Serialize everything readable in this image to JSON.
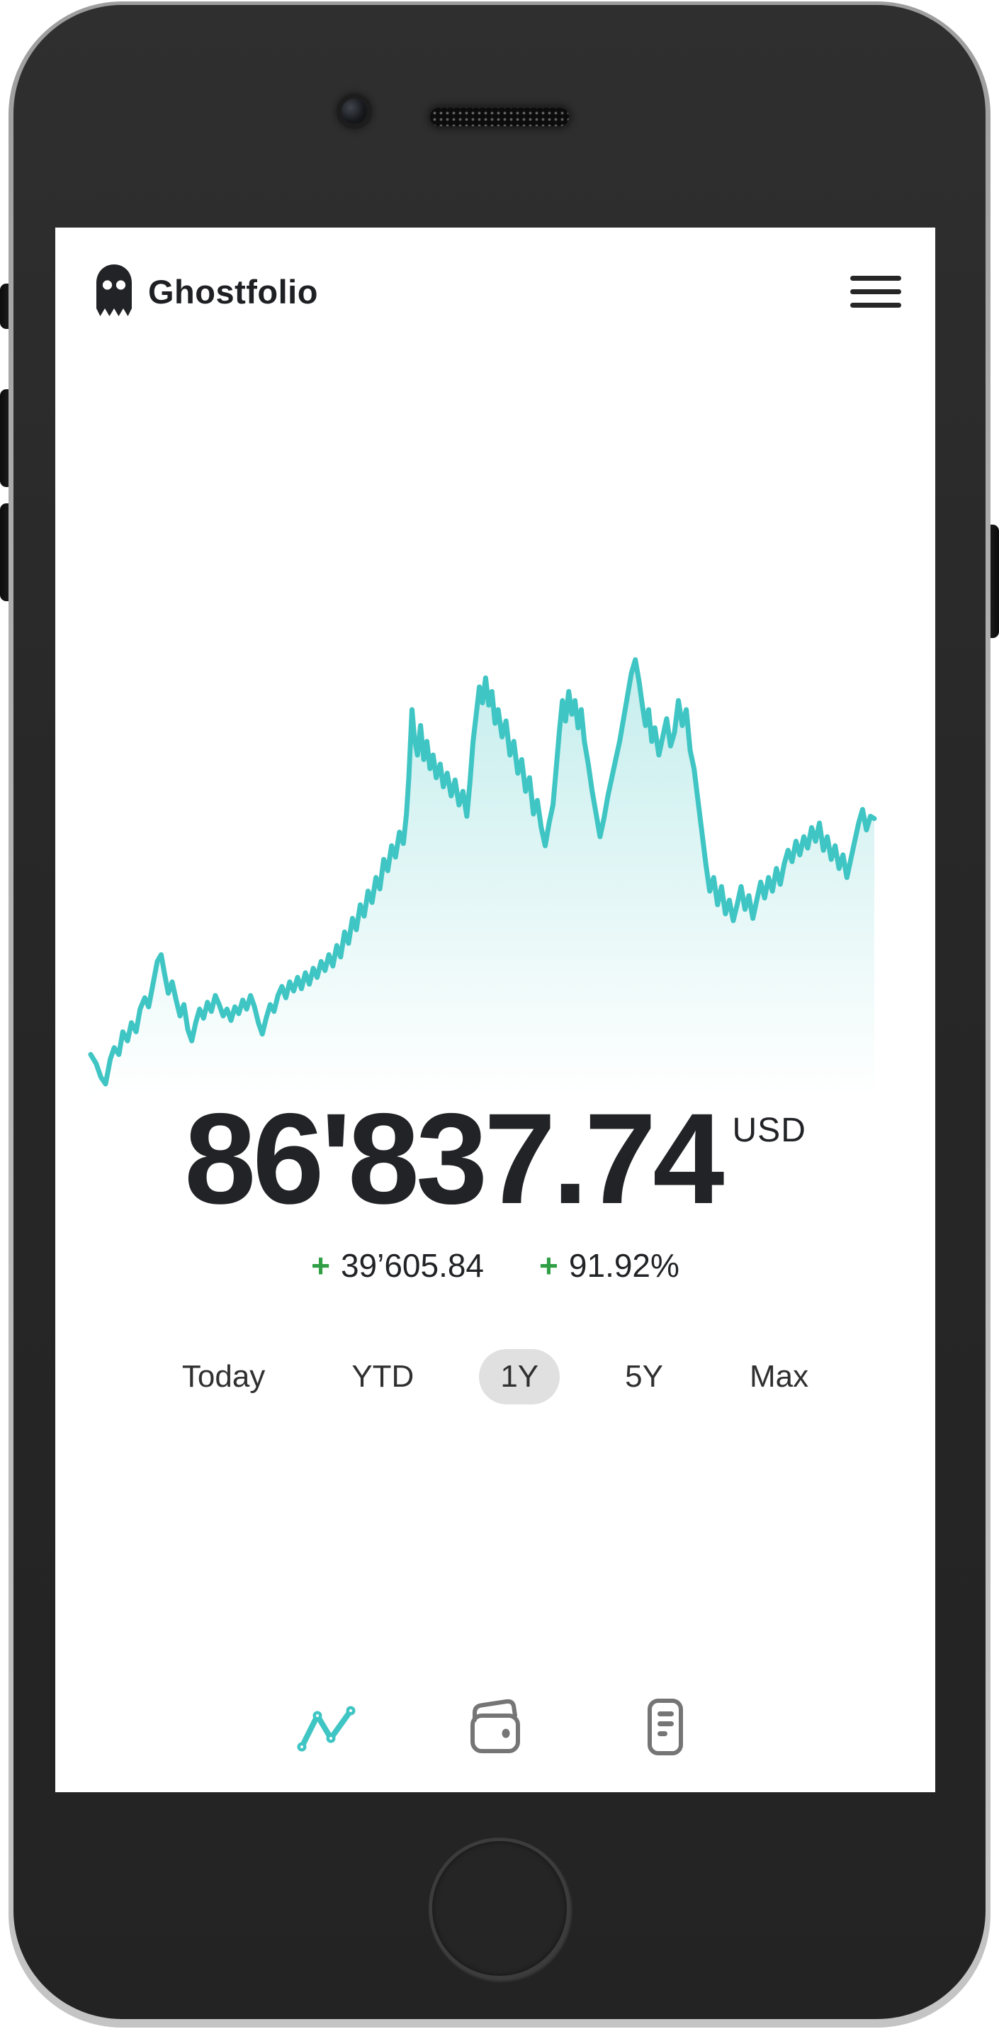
{
  "header": {
    "title": "Ghostfolio",
    "logo_icon": "ghost-icon",
    "menu_icon": "hamburger-menu-icon"
  },
  "portfolio": {
    "value": "86'837.74",
    "currency": "USD",
    "change_value_sign": "+",
    "change_value": "39’605.84",
    "change_percent_sign": "+",
    "change_percent": "91.92%"
  },
  "ranges": {
    "selected": "1Y",
    "options": [
      {
        "label": "Today",
        "selected": false
      },
      {
        "label": "YTD",
        "selected": false
      },
      {
        "label": "1Y",
        "selected": true
      },
      {
        "label": "5Y",
        "selected": false
      },
      {
        "label": "Max",
        "selected": false
      }
    ]
  },
  "nav": {
    "items": [
      {
        "icon": "performance-line-chart-icon",
        "active": true
      },
      {
        "icon": "wallet-icon",
        "active": false
      },
      {
        "icon": "transactions-document-icon",
        "active": false
      }
    ]
  },
  "colors": {
    "accent": "#3fc5c3",
    "green": "#2f9e44",
    "text": "#222326",
    "icon_gray": "#757575",
    "pill": "#e0e0e0",
    "fill_top": "rgba(63,197,195,0.30)",
    "fill_bottom": "rgba(63,197,195,0)"
  },
  "chart_data": {
    "type": "area",
    "title": "Portfolio performance sparkline",
    "range": "1Y",
    "end_value": "86'837.74",
    "line_color": "#3fc5c3",
    "fill": "vertical gradient teal to transparent",
    "grid": false,
    "axes_visible": false,
    "note": "points normalized: x 0-100 left to right, y 0-100 top to bottom (smaller y = higher portfolio value)",
    "points": [
      [
        0,
        91
      ],
      [
        0.7,
        93
      ],
      [
        1.3,
        96
      ],
      [
        1.9,
        97.5
      ],
      [
        2.5,
        92
      ],
      [
        3,
        89.5
      ],
      [
        3.6,
        91
      ],
      [
        4.1,
        86
      ],
      [
        4.7,
        88
      ],
      [
        5.2,
        84
      ],
      [
        5.8,
        86
      ],
      [
        6.3,
        81
      ],
      [
        6.9,
        78.5
      ],
      [
        7.4,
        80.5
      ],
      [
        8,
        75
      ],
      [
        8.5,
        70.5
      ],
      [
        9,
        69
      ],
      [
        9.4,
        73
      ],
      [
        9.9,
        77.5
      ],
      [
        10.4,
        75
      ],
      [
        10.9,
        79
      ],
      [
        11.4,
        82.5
      ],
      [
        11.9,
        80
      ],
      [
        12.4,
        85.5
      ],
      [
        12.9,
        88
      ],
      [
        13.4,
        84
      ],
      [
        13.9,
        81
      ],
      [
        14.4,
        83
      ],
      [
        14.9,
        79.5
      ],
      [
        15.4,
        81.5
      ],
      [
        15.9,
        78
      ],
      [
        16.4,
        80
      ],
      [
        16.9,
        82.5
      ],
      [
        17.4,
        81
      ],
      [
        17.9,
        83.5
      ],
      [
        18.4,
        80.5
      ],
      [
        18.9,
        82
      ],
      [
        19.4,
        79
      ],
      [
        19.9,
        81
      ],
      [
        20.4,
        78
      ],
      [
        20.9,
        80.5
      ],
      [
        21.4,
        84
      ],
      [
        21.9,
        86.5
      ],
      [
        22.4,
        83
      ],
      [
        22.9,
        80
      ],
      [
        23.4,
        81.5
      ],
      [
        23.9,
        78
      ],
      [
        24.4,
        76
      ],
      [
        24.9,
        78.5
      ],
      [
        25.4,
        75
      ],
      [
        25.9,
        77
      ],
      [
        26.4,
        74
      ],
      [
        26.9,
        76.5
      ],
      [
        27.4,
        73
      ],
      [
        27.9,
        75.5
      ],
      [
        28.4,
        72
      ],
      [
        28.9,
        74
      ],
      [
        29.4,
        70.5
      ],
      [
        29.9,
        72.5
      ],
      [
        30.4,
        69
      ],
      [
        30.9,
        71.5
      ],
      [
        31.4,
        67
      ],
      [
        31.9,
        69.5
      ],
      [
        32.4,
        64
      ],
      [
        32.9,
        66.5
      ],
      [
        33.4,
        61
      ],
      [
        33.9,
        63.5
      ],
      [
        34.4,
        58
      ],
      [
        34.9,
        60.5
      ],
      [
        35.4,
        55
      ],
      [
        35.9,
        57.5
      ],
      [
        36.4,
        52
      ],
      [
        36.9,
        54.5
      ],
      [
        37.4,
        48
      ],
      [
        37.9,
        50.5
      ],
      [
        38.4,
        45
      ],
      [
        38.9,
        47.5
      ],
      [
        39.4,
        42
      ],
      [
        39.9,
        44.5
      ],
      [
        40.3,
        38
      ],
      [
        40.6,
        30
      ],
      [
        41,
        15
      ],
      [
        41.3,
        21
      ],
      [
        41.7,
        25
      ],
      [
        42.1,
        18.5
      ],
      [
        42.5,
        26
      ],
      [
        42.9,
        22
      ],
      [
        43.3,
        28
      ],
      [
        43.7,
        25
      ],
      [
        44.1,
        30
      ],
      [
        44.6,
        27
      ],
      [
        45,
        32
      ],
      [
        45.5,
        29
      ],
      [
        46,
        34
      ],
      [
        46.5,
        30.5
      ],
      [
        47,
        36
      ],
      [
        47.5,
        33
      ],
      [
        48,
        38.5
      ],
      [
        48.4,
        31
      ],
      [
        48.8,
        22
      ],
      [
        49.2,
        16
      ],
      [
        49.6,
        10
      ],
      [
        50,
        13.5
      ],
      [
        50.4,
        8
      ],
      [
        50.8,
        14
      ],
      [
        51.2,
        11
      ],
      [
        51.6,
        18
      ],
      [
        52,
        15
      ],
      [
        52.5,
        21
      ],
      [
        53,
        17.5
      ],
      [
        53.5,
        25
      ],
      [
        54,
        22
      ],
      [
        54.5,
        29
      ],
      [
        55,
        26
      ],
      [
        55.5,
        33
      ],
      [
        56,
        30
      ],
      [
        56.5,
        38
      ],
      [
        57,
        35
      ],
      [
        57.5,
        41
      ],
      [
        58,
        45
      ],
      [
        58.5,
        40
      ],
      [
        59,
        36
      ],
      [
        59.4,
        28
      ],
      [
        59.8,
        20
      ],
      [
        60.2,
        13
      ],
      [
        60.6,
        17.5
      ],
      [
        61,
        11
      ],
      [
        61.4,
        16
      ],
      [
        61.8,
        13
      ],
      [
        62.2,
        19
      ],
      [
        62.6,
        15
      ],
      [
        63,
        22
      ],
      [
        63.5,
        27
      ],
      [
        64,
        33
      ],
      [
        64.5,
        38
      ],
      [
        65,
        43
      ],
      [
        65.5,
        39
      ],
      [
        66,
        34
      ],
      [
        66.5,
        30
      ],
      [
        67,
        26
      ],
      [
        67.5,
        22
      ],
      [
        68,
        17
      ],
      [
        68.5,
        12
      ],
      [
        69,
        7
      ],
      [
        69.5,
        4
      ],
      [
        70,
        9
      ],
      [
        70.4,
        14
      ],
      [
        70.8,
        18.5
      ],
      [
        71.2,
        15
      ],
      [
        71.6,
        22
      ],
      [
        72,
        19
      ],
      [
        72.5,
        25
      ],
      [
        73,
        21
      ],
      [
        73.5,
        17
      ],
      [
        74,
        23
      ],
      [
        74.5,
        20
      ],
      [
        75,
        13
      ],
      [
        75.5,
        18.5
      ],
      [
        76,
        15
      ],
      [
        76.5,
        24
      ],
      [
        77,
        28
      ],
      [
        77.5,
        35
      ],
      [
        78,
        42
      ],
      [
        78.5,
        49
      ],
      [
        79,
        55
      ],
      [
        79.5,
        52
      ],
      [
        80,
        58
      ],
      [
        80.5,
        54
      ],
      [
        81,
        60
      ],
      [
        81.5,
        57
      ],
      [
        82,
        61.5
      ],
      [
        82.5,
        58
      ],
      [
        83,
        54
      ],
      [
        83.5,
        59
      ],
      [
        84,
        56
      ],
      [
        84.5,
        61
      ],
      [
        85,
        57
      ],
      [
        85.5,
        53
      ],
      [
        86,
        56.5
      ],
      [
        86.5,
        52
      ],
      [
        87,
        55
      ],
      [
        87.5,
        50
      ],
      [
        88,
        53.5
      ],
      [
        88.5,
        49
      ],
      [
        89,
        46
      ],
      [
        89.5,
        48.5
      ],
      [
        90,
        44
      ],
      [
        90.5,
        47
      ],
      [
        91,
        43
      ],
      [
        91.5,
        45.5
      ],
      [
        92,
        41
      ],
      [
        92.5,
        44
      ],
      [
        93,
        40
      ],
      [
        93.5,
        46
      ],
      [
        94,
        43
      ],
      [
        94.5,
        48
      ],
      [
        95,
        45
      ],
      [
        95.5,
        50
      ],
      [
        96,
        47
      ],
      [
        96.5,
        52
      ],
      [
        97,
        48
      ],
      [
        97.5,
        44
      ],
      [
        98,
        40
      ],
      [
        98.5,
        37
      ],
      [
        99,
        41.5
      ],
      [
        99.5,
        38.5
      ],
      [
        100,
        39
      ]
    ]
  }
}
